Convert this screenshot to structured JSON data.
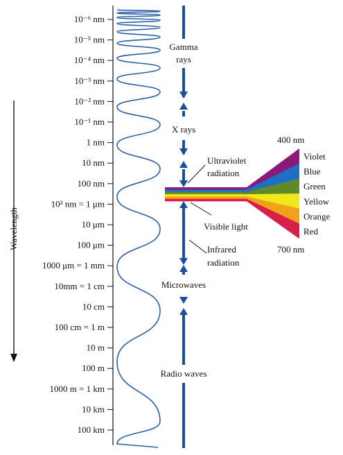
{
  "axis": {
    "title": "Wavelength",
    "ticks": [
      "10⁻⁶ nm",
      "10⁻⁵ nm",
      "10⁻⁴ nm",
      "10⁻³ nm",
      "10⁻² nm",
      "10⁻¹ nm",
      "1 nm",
      "10 nm",
      "100 nm",
      "10³ nm = 1 μm",
      "10 μm",
      "100 μm",
      "1000 μm = 1 mm",
      "10mm = 1 cm",
      "10 cm",
      "100 cm = 1 m",
      "10 m",
      "100 m",
      "1000 m = 1 km",
      "10 km",
      "100 km"
    ]
  },
  "bands": [
    {
      "id": "gamma",
      "lines": [
        "Gamma",
        "rays"
      ]
    },
    {
      "id": "xray",
      "lines": [
        "X rays"
      ]
    },
    {
      "id": "microwave",
      "lines": [
        "Microwaves"
      ]
    },
    {
      "id": "radio",
      "lines": [
        "Radio waves"
      ]
    }
  ],
  "side_labels": [
    {
      "id": "ultraviolet",
      "lines": [
        "Ultraviolet",
        "radiation"
      ]
    },
    {
      "id": "visible",
      "lines": [
        "Visible light"
      ]
    },
    {
      "id": "infrared",
      "lines": [
        "Infrared",
        "radiation"
      ]
    }
  ],
  "spectrum": {
    "top_label": "400 nm",
    "bottom_label": "700 nm",
    "colors": [
      {
        "name": "Violet",
        "hex": "#8a1a7a"
      },
      {
        "name": "Blue",
        "hex": "#1f6fc4"
      },
      {
        "name": "Green",
        "hex": "#5f8a2a"
      },
      {
        "name": "Yellow",
        "hex": "#f0e81a"
      },
      {
        "name": "Orange",
        "hex": "#f2a21a"
      },
      {
        "name": "Red",
        "hex": "#d81e4a"
      }
    ]
  },
  "colors": {
    "arrow": "#1a4f9c",
    "wave": "#2a5fa8",
    "axis": "#111111"
  }
}
